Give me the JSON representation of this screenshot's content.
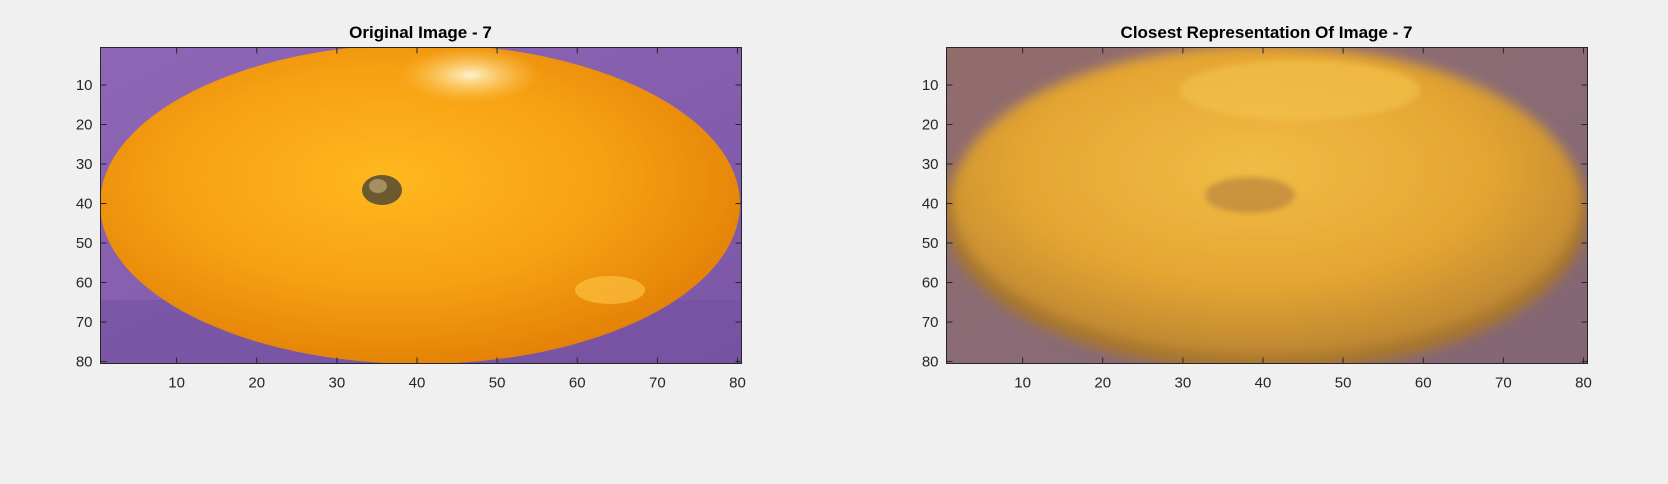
{
  "figure": {
    "background": "#f0f0f0",
    "axis_color": "#262626"
  },
  "chart_data": [
    {
      "type": "image",
      "title": "Original Image - 7",
      "xlim": [
        0.5,
        80.5
      ],
      "ylim": [
        0.5,
        80.5
      ],
      "y_reversed": true,
      "xticks": [
        10,
        20,
        30,
        40,
        50,
        60,
        70,
        80
      ],
      "yticks": [
        10,
        20,
        30,
        40,
        50,
        60,
        70,
        80
      ],
      "xtick_labels": [
        "10",
        "20",
        "30",
        "40",
        "50",
        "60",
        "70",
        "80"
      ],
      "ytick_labels": [
        "10",
        "20",
        "30",
        "40",
        "50",
        "60",
        "70",
        "80"
      ],
      "xlabel": "",
      "ylabel": "",
      "grid": false,
      "content": "orange fruit on purple background, sharp",
      "colors": {
        "background": "#8a63b0",
        "fruit": "#f3a012",
        "fruit_highlight": "#ffd060",
        "fruit_shadow": "#e07c08",
        "stem": "#5a5030"
      }
    },
    {
      "type": "image",
      "title": "Closest Representation Of Image - 7",
      "xlim": [
        0.5,
        80.5
      ],
      "ylim": [
        0.5,
        80.5
      ],
      "y_reversed": true,
      "xticks": [
        10,
        20,
        30,
        40,
        50,
        60,
        70,
        80
      ],
      "yticks": [
        10,
        20,
        30,
        40,
        50,
        60,
        70,
        80
      ],
      "xtick_labels": [
        "10",
        "20",
        "30",
        "40",
        "50",
        "60",
        "70",
        "80"
      ],
      "ytick_labels": [
        "10",
        "20",
        "30",
        "40",
        "50",
        "60",
        "70",
        "80"
      ],
      "xlabel": "",
      "ylabel": "",
      "grid": false,
      "content": "orange fruit on muted mauve background, blurred reconstruction",
      "colors": {
        "background": "#8c6a72",
        "fruit": "#e6a531",
        "fruit_highlight": "#f2c24a",
        "fruit_shadow": "#bf7f2c",
        "stem": "#b07a38"
      }
    }
  ]
}
